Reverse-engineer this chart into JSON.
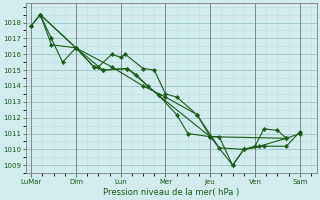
{
  "background_color": "#d0ecec",
  "grid_major_color": "#a0cccc",
  "grid_minor_color": "#b8dede",
  "line_color": "#1a5c1a",
  "marker_color": "#1a5c1a",
  "xlabel": "Pression niveau de la mer( hPa )",
  "ylim": [
    1008.5,
    1019.2
  ],
  "yticks": [
    1009,
    1010,
    1011,
    1012,
    1013,
    1014,
    1015,
    1016,
    1017,
    1018
  ],
  "x_labels": [
    "LuMar",
    "Dim",
    "Lun",
    "Mer",
    "Jeu",
    "Ven",
    "Sam"
  ],
  "x_positions": [
    0,
    40,
    80,
    120,
    160,
    200,
    240
  ],
  "series1_x": [
    0,
    8,
    18,
    40,
    56,
    60,
    72,
    80,
    84,
    100,
    110,
    120,
    130,
    148,
    160,
    168,
    180,
    190,
    200,
    208,
    220,
    228,
    240
  ],
  "series1_y": [
    1017.8,
    1018.5,
    1016.6,
    1016.4,
    1015.2,
    1015.2,
    1016.0,
    1015.8,
    1016.0,
    1015.1,
    1015.0,
    1013.5,
    1013.3,
    1012.2,
    1010.8,
    1010.8,
    1009.0,
    1010.0,
    1010.2,
    1011.3,
    1011.2,
    1010.7,
    1011.0
  ],
  "series2_x": [
    8,
    18,
    28,
    40,
    56,
    64,
    86,
    94,
    104,
    114,
    130,
    140,
    160,
    180,
    190,
    204,
    228
  ],
  "series2_y": [
    1018.5,
    1017.0,
    1015.5,
    1016.4,
    1015.2,
    1015.0,
    1015.1,
    1014.7,
    1014.0,
    1013.4,
    1012.2,
    1011.0,
    1010.8,
    1009.0,
    1010.0,
    1010.2,
    1010.7
  ],
  "series3_x": [
    8,
    40,
    64,
    86,
    114,
    160,
    228
  ],
  "series3_y": [
    1018.5,
    1016.4,
    1015.0,
    1015.1,
    1013.4,
    1010.8,
    1010.7
  ],
  "series4_x": [
    0,
    8,
    40,
    72,
    100,
    120,
    148,
    168,
    190,
    208,
    228,
    240
  ],
  "series4_y": [
    1017.8,
    1018.5,
    1016.4,
    1015.2,
    1014.0,
    1013.3,
    1012.2,
    1010.1,
    1010.0,
    1010.2,
    1010.2,
    1011.1
  ]
}
